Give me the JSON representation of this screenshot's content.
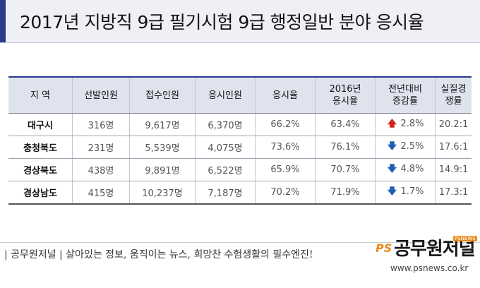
{
  "header": {
    "title": "2017년 지방직 9급 필기시험 9급 행정일반 분야 응시율",
    "accent_color": "#2b3a8c"
  },
  "table": {
    "headers": [
      "지 역",
      "선발인원",
      "접수인원",
      "응시인원",
      "응시율",
      "2016년 응시율",
      "전년대비 증감률",
      "실질경쟁률"
    ],
    "rows": [
      {
        "region": "대구시",
        "selected": "316명",
        "applied": "9,617명",
        "tested": "6,370명",
        "rate": "66.2%",
        "rate_2016": "63.4%",
        "change_dir": "up",
        "change_arrow": "🡅",
        "change": "2.8%",
        "competition": "20.2:1"
      },
      {
        "region": "충청북도",
        "selected": "231명",
        "applied": "5,539명",
        "tested": "4,075명",
        "rate": "73.6%",
        "rate_2016": "76.1%",
        "change_dir": "down",
        "change_arrow": "🡇",
        "change": "2.5%",
        "competition": "17.6:1"
      },
      {
        "region": "경상북도",
        "selected": "438명",
        "applied": "9,891명",
        "tested": "6,522명",
        "rate": "65.9%",
        "rate_2016": "70.7%",
        "change_dir": "down",
        "change_arrow": "🡇",
        "change": "4.8%",
        "competition": "14.9:1"
      },
      {
        "region": "경상남도",
        "selected": "415명",
        "applied": "10,237명",
        "tested": "7,187명",
        "rate": "70.2%",
        "rate_2016": "71.9%",
        "change_dir": "down",
        "change_arrow": "🡇",
        "change": "1.7%",
        "competition": "17.3:1"
      }
    ],
    "up_color": "#d42020",
    "down_color": "#1f5fb0"
  },
  "footer": {
    "tagline": "| 공무원저널 |  살아있는 정보, 움직이는 뉴스, 희망찬 수험생활의 필수엔진!",
    "logo_ps": "PS",
    "logo_main": "공무원저널",
    "logo_badge": "PSNEWS",
    "url": "www.psnews.co.kr",
    "logo_color": "#e88a1a"
  }
}
